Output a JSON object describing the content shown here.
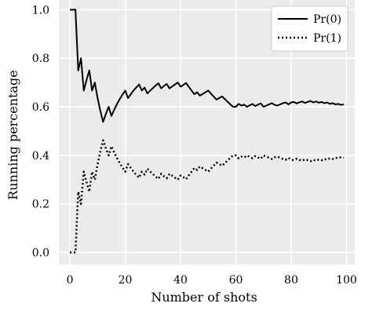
{
  "chart_data": {
    "type": "line",
    "xlabel": "Number of shots",
    "ylabel": "Running percentage",
    "xlim": [
      -4,
      103
    ],
    "ylim": [
      -0.05,
      1.04
    ],
    "x_ticks": [
      0,
      20,
      40,
      60,
      80,
      100
    ],
    "y_ticks": [
      0.0,
      0.2,
      0.4,
      0.6,
      0.8,
      1.0
    ],
    "x_tick_labels": [
      "0",
      "20",
      "40",
      "60",
      "80",
      "100"
    ],
    "y_tick_labels": [
      "0.0",
      "0.2",
      "0.4",
      "0.6",
      "0.8",
      "1.0"
    ],
    "grid": true,
    "legend_position": "top-right",
    "series": [
      {
        "name": "Pr(0)",
        "style": "solid",
        "color": "#000000",
        "x": [
          0,
          1,
          2,
          3,
          4,
          5,
          6,
          7,
          8,
          9,
          10,
          11,
          12,
          13,
          14,
          15,
          16,
          17,
          18,
          19,
          20,
          21,
          22,
          23,
          24,
          25,
          26,
          27,
          28,
          29,
          30,
          31,
          32,
          33,
          34,
          35,
          36,
          37,
          38,
          39,
          40,
          41,
          42,
          43,
          44,
          45,
          46,
          47,
          48,
          49,
          50,
          51,
          52,
          53,
          54,
          55,
          56,
          57,
          58,
          59,
          60,
          61,
          62,
          63,
          64,
          65,
          66,
          67,
          68,
          69,
          70,
          71,
          72,
          73,
          74,
          75,
          76,
          77,
          78,
          79,
          80,
          81,
          82,
          83,
          84,
          85,
          86,
          87,
          88,
          89,
          90,
          91,
          92,
          93,
          94,
          95,
          96,
          97,
          98,
          99
        ],
        "values": [
          1.0,
          1.0,
          1.0,
          0.75,
          0.8,
          0.667,
          0.71,
          0.75,
          0.667,
          0.7,
          0.636,
          0.583,
          0.538,
          0.571,
          0.6,
          0.5625,
          0.588,
          0.611,
          0.632,
          0.65,
          0.667,
          0.636,
          0.652,
          0.667,
          0.68,
          0.692,
          0.667,
          0.679,
          0.655,
          0.667,
          0.677,
          0.688,
          0.697,
          0.676,
          0.686,
          0.694,
          0.676,
          0.684,
          0.692,
          0.7,
          0.683,
          0.69,
          0.698,
          0.682,
          0.667,
          0.652,
          0.66,
          0.646,
          0.653,
          0.66,
          0.667,
          0.654,
          0.642,
          0.63,
          0.636,
          0.643,
          0.632,
          0.621,
          0.61,
          0.6,
          0.6,
          0.612,
          0.605,
          0.609,
          0.6,
          0.606,
          0.612,
          0.603,
          0.609,
          0.614,
          0.6,
          0.605,
          0.61,
          0.615,
          0.608,
          0.605,
          0.61,
          0.615,
          0.618,
          0.61,
          0.618,
          0.62,
          0.614,
          0.619,
          0.622,
          0.616,
          0.62,
          0.624,
          0.618,
          0.622,
          0.617,
          0.62,
          0.615,
          0.618,
          0.612,
          0.615,
          0.61,
          0.612,
          0.608,
          0.61
        ]
      },
      {
        "name": "Pr(1)",
        "style": "dotted",
        "color": "#000000",
        "x": [
          0,
          1,
          2,
          3,
          4,
          5,
          6,
          7,
          8,
          9,
          10,
          11,
          12,
          13,
          14,
          15,
          16,
          17,
          18,
          19,
          20,
          21,
          22,
          23,
          24,
          25,
          26,
          27,
          28,
          29,
          30,
          31,
          32,
          33,
          34,
          35,
          36,
          37,
          38,
          39,
          40,
          41,
          42,
          43,
          44,
          45,
          46,
          47,
          48,
          49,
          50,
          51,
          52,
          53,
          54,
          55,
          56,
          57,
          58,
          59,
          60,
          61,
          62,
          63,
          64,
          65,
          66,
          67,
          68,
          69,
          70,
          71,
          72,
          73,
          74,
          75,
          76,
          77,
          78,
          79,
          80,
          81,
          82,
          83,
          84,
          85,
          86,
          87,
          88,
          89,
          90,
          91,
          92,
          93,
          94,
          95,
          96,
          97,
          98,
          99
        ],
        "values": [
          0.0,
          0.0,
          0.0,
          0.25,
          0.2,
          0.333,
          0.29,
          0.25,
          0.333,
          0.3,
          0.364,
          0.417,
          0.462,
          0.429,
          0.4,
          0.4375,
          0.412,
          0.389,
          0.368,
          0.35,
          0.333,
          0.364,
          0.348,
          0.333,
          0.32,
          0.308,
          0.333,
          0.321,
          0.345,
          0.333,
          0.323,
          0.312,
          0.303,
          0.324,
          0.314,
          0.306,
          0.324,
          0.316,
          0.308,
          0.3,
          0.317,
          0.31,
          0.302,
          0.318,
          0.333,
          0.348,
          0.34,
          0.354,
          0.347,
          0.34,
          0.333,
          0.346,
          0.358,
          0.37,
          0.364,
          0.357,
          0.368,
          0.379,
          0.39,
          0.4,
          0.4,
          0.388,
          0.395,
          0.391,
          0.4,
          0.394,
          0.388,
          0.397,
          0.391,
          0.386,
          0.4,
          0.395,
          0.39,
          0.385,
          0.392,
          0.395,
          0.39,
          0.385,
          0.382,
          0.39,
          0.382,
          0.38,
          0.386,
          0.381,
          0.378,
          0.384,
          0.38,
          0.376,
          0.382,
          0.378,
          0.383,
          0.38,
          0.385,
          0.382,
          0.388,
          0.385,
          0.39,
          0.388,
          0.392,
          0.39
        ]
      }
    ]
  }
}
